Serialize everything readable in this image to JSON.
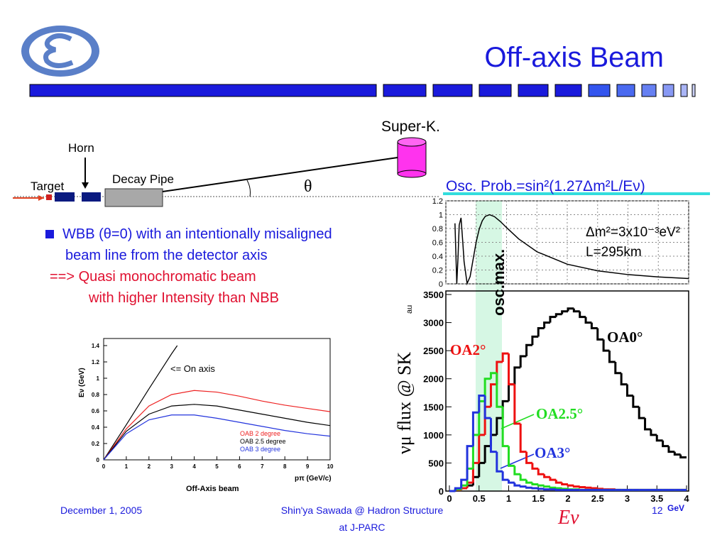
{
  "header": {
    "title": "Off-axis Beam"
  },
  "beamline": {
    "target": "Target",
    "horn": "Horn",
    "decay_pipe": "Decay Pipe",
    "detector": "Super-K.",
    "angle": "θ"
  },
  "bullets": [
    "WBB (θ=0) with an intentionally misaligned",
    "beam line from the detector axis",
    "==> Quasi monochromatic beam",
    "with higher Intensity than NBB"
  ],
  "osc_prob": {
    "type": "line",
    "title": "Osc. Prob.=sin²(1.27Δm²L/Eν)",
    "params": [
      "Δm²=3x10⁻³eV²",
      "L=295km"
    ],
    "annotation": "osc.max.",
    "x": [
      0.15,
      0.18,
      0.2,
      0.22,
      0.25,
      0.28,
      0.3,
      0.35,
      0.4,
      0.45,
      0.5,
      0.55,
      0.6,
      0.65,
      0.72,
      0.8,
      0.9,
      1.0,
      1.2,
      1.5,
      2,
      2.5,
      3,
      3.5,
      4
    ],
    "values": [
      0.875,
      0.0015,
      0.377,
      0.85,
      0.955,
      0.588,
      0.323,
      0.005,
      0.106,
      0.359,
      0.606,
      0.793,
      0.912,
      0.976,
      1.0,
      0.972,
      0.9,
      0.813,
      0.649,
      0.464,
      0.284,
      0.189,
      0.134,
      0.1,
      0.077
    ],
    "color": "#000000",
    "xlim": [
      0,
      4
    ],
    "ylim": [
      0,
      1.2
    ],
    "yticks": [
      0,
      0.2,
      0.4,
      0.6,
      0.8,
      1,
      1.2
    ],
    "grid": true
  },
  "flux": {
    "type": "histogram",
    "y_label": "νμ flux @ SK",
    "y_unit": "au",
    "x_label": "Eν",
    "x_unit": "GeV",
    "bins": [
      0,
      0.1,
      0.2,
      0.3,
      0.4,
      0.5,
      0.6,
      0.7,
      0.8,
      0.9,
      1,
      1.1,
      1.2,
      1.3,
      1.4,
      1.5,
      1.6,
      1.7,
      1.8,
      1.9,
      2,
      2.1,
      2.2,
      2.3,
      2.4,
      2.5,
      2.6,
      2.7,
      2.8,
      2.9,
      3,
      3.1,
      3.2,
      3.3,
      3.4,
      3.5,
      3.6,
      3.7,
      3.8,
      3.9,
      4
    ],
    "series": [
      {
        "name": "OA0°",
        "color": "#000000",
        "values": [
          0,
          20,
          50,
          100,
          250,
          500,
          800,
          1000,
          1300,
          1600,
          1900,
          2200,
          2400,
          2600,
          2750,
          2900,
          3000,
          3100,
          3150,
          3200,
          3250,
          3200,
          3100,
          3000,
          2900,
          2700,
          2500,
          2300,
          2100,
          1900,
          1700,
          1500,
          1300,
          1100,
          1000,
          900,
          800,
          700,
          650,
          600
        ]
      },
      {
        "name": "OA2°",
        "color": "#ee1111",
        "values": [
          0,
          20,
          50,
          150,
          500,
          1000,
          1500,
          1900,
          2300,
          2450,
          1900,
          1200,
          700,
          500,
          400,
          300,
          250,
          200,
          150,
          120,
          100,
          80,
          70,
          60,
          50,
          40,
          30,
          30,
          20,
          20,
          20,
          20,
          20,
          20,
          20,
          20,
          20,
          20,
          20,
          20
        ]
      },
      {
        "name": "OA2.5°",
        "color": "#22dd22",
        "values": [
          0,
          30,
          100,
          400,
          1000,
          1600,
          2000,
          2100,
          1500,
          800,
          450,
          300,
          200,
          150,
          120,
          100,
          80,
          60,
          50,
          40,
          30,
          30,
          20,
          20,
          20,
          20,
          20,
          20,
          20,
          20,
          20,
          20,
          20,
          20,
          20,
          20,
          20,
          20,
          20,
          20
        ]
      },
      {
        "name": "OA3°",
        "color": "#2233dd",
        "values": [
          0,
          50,
          200,
          800,
          1400,
          1700,
          1300,
          700,
          350,
          200,
          150,
          100,
          80,
          60,
          50,
          40,
          30,
          30,
          20,
          20,
          20,
          20,
          20,
          20,
          20,
          20,
          20,
          20,
          20,
          20,
          20,
          20,
          20,
          20,
          20,
          20,
          20,
          20,
          20,
          20
        ]
      }
    ],
    "xlim": [
      0,
      4
    ],
    "ylim": [
      0,
      3500
    ],
    "xticks": [
      0,
      0.5,
      1,
      1.5,
      2,
      2.5,
      3,
      3.5,
      4
    ],
    "yticks": [
      0,
      500,
      1000,
      1500,
      2000,
      2500,
      3000,
      3500
    ]
  },
  "energy": {
    "type": "line",
    "title": "Off-Axis beam",
    "x_label": "pπ (GeV/c)",
    "y_label": "Eν (GeV)",
    "annotation": "<= On axis",
    "on_axis": {
      "x": [
        0,
        1,
        2,
        3,
        3.25
      ],
      "values": [
        0,
        0.43,
        0.87,
        1.3,
        1.4
      ],
      "color": "#000000"
    },
    "x": [
      0,
      1,
      2,
      3,
      4,
      5,
      6,
      7,
      8,
      9,
      10
    ],
    "series": [
      {
        "name": "OAB 2 degree",
        "color": "#ee2222",
        "values": [
          0,
          0.38,
          0.66,
          0.8,
          0.85,
          0.83,
          0.78,
          0.72,
          0.67,
          0.63,
          0.59
        ]
      },
      {
        "name": "OAB 2.5 degree",
        "color": "#000000",
        "values": [
          0,
          0.35,
          0.56,
          0.66,
          0.68,
          0.66,
          0.61,
          0.56,
          0.51,
          0.46,
          0.42
        ]
      },
      {
        "name": "OAB 3 degree",
        "color": "#2233dd",
        "values": [
          0,
          0.32,
          0.49,
          0.55,
          0.55,
          0.51,
          0.46,
          0.41,
          0.36,
          0.32,
          0.29
        ]
      }
    ],
    "xlim": [
      0,
      10
    ],
    "ylim": [
      0,
      1.4
    ],
    "xticks": [
      0,
      1,
      2,
      3,
      4,
      5,
      6,
      7,
      8,
      9,
      10
    ],
    "yticks": [
      0,
      0.2,
      0.4,
      0.6,
      0.8,
      1,
      1.2,
      1.4
    ]
  },
  "footer": {
    "date": "December 1, 2005",
    "author": "Shin'ya Sawada @ Hadron Structure",
    "venue": "at J-PARC",
    "page": "12"
  }
}
